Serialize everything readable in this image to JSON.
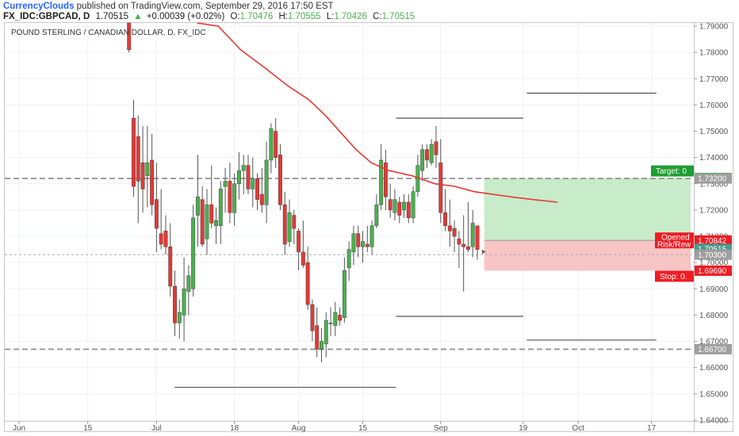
{
  "header": {
    "author": "CurrencyClouds",
    "published": " published on TradingView.com, September 29, 2016 17:50 EST",
    "symbol": "FX_IDC:GBPCAD, D",
    "last": "1.70515",
    "arrow": "▲",
    "change": "+0.00039 (+0.02%)",
    "o_label": "O:",
    "o_value": "1.70476",
    "h_label": "H:",
    "h_value": "1.70555",
    "l_label": "L:",
    "l_value": "1.70426",
    "c_label": "C:",
    "c_value": "1.70515"
  },
  "colors": {
    "up": "#4caf50",
    "down": "#e53935",
    "ma": "#e53935",
    "target_zone": "#c8ebc9",
    "stop_zone": "#f8c5c5",
    "target_tag": "#1e9e30",
    "stop_tag": "#ee1c24",
    "price_tag": "#4a9a8c"
  },
  "chart_data": {
    "type": "candlestick",
    "title": "POUND STERLING / CANADIAN DOLLAR, D, FX_IDC",
    "ylim": [
      1.64,
      1.795
    ],
    "y_ticks": [
      "1.79000",
      "1.78000",
      "1.77000",
      "1.76000",
      "1.75000",
      "1.74000",
      "1.73000",
      "1.72000",
      "1.71000",
      "1.70000",
      "1.69000",
      "1.68000",
      "1.67000",
      "1.66000",
      "1.65000",
      "1.64000"
    ],
    "x_ticks": [
      {
        "label": "Jun",
        "day": 0
      },
      {
        "label": "15",
        "day": 15
      },
      {
        "label": "Jul",
        "day": 30
      },
      {
        "label": "18",
        "day": 47
      },
      {
        "label": "Aug",
        "day": 61
      },
      {
        "label": "15",
        "day": 75
      },
      {
        "label": "Sep",
        "day": 92
      },
      {
        "label": "19",
        "day": 110
      },
      {
        "label": "Oct",
        "day": 122
      },
      {
        "label": "17",
        "day": 138
      }
    ],
    "x_range": [
      -2,
      154
    ],
    "candles": [
      {
        "d": 24,
        "o": 1.797,
        "h": 1.8,
        "l": 1.78,
        "c": 1.781
      },
      {
        "d": 25,
        "o": 1.755,
        "h": 1.762,
        "l": 1.725,
        "c": 1.729
      },
      {
        "d": 26,
        "o": 1.748,
        "h": 1.756,
        "l": 1.715,
        "c": 1.731
      },
      {
        "d": 27,
        "o": 1.738,
        "h": 1.752,
        "l": 1.719,
        "c": 1.728
      },
      {
        "d": 28,
        "o": 1.733,
        "h": 1.752,
        "l": 1.721,
        "c": 1.738
      },
      {
        "d": 29,
        "o": 1.739,
        "h": 1.749,
        "l": 1.718,
        "c": 1.722
      },
      {
        "d": 30,
        "o": 1.724,
        "h": 1.738,
        "l": 1.704,
        "c": 1.713
      },
      {
        "d": 31,
        "o": 1.711,
        "h": 1.728,
        "l": 1.705,
        "c": 1.707
      },
      {
        "d": 32,
        "o": 1.712,
        "h": 1.718,
        "l": 1.703,
        "c": 1.706
      },
      {
        "d": 33,
        "o": 1.706,
        "h": 1.715,
        "l": 1.687,
        "c": 1.691
      },
      {
        "d": 34,
        "o": 1.691,
        "h": 1.697,
        "l": 1.672,
        "c": 1.677
      },
      {
        "d": 35,
        "o": 1.677,
        "h": 1.686,
        "l": 1.671,
        "c": 1.681
      },
      {
        "d": 36,
        "o": 1.68,
        "h": 1.702,
        "l": 1.67,
        "c": 1.69
      },
      {
        "d": 37,
        "o": 1.689,
        "h": 1.699,
        "l": 1.68,
        "c": 1.695
      },
      {
        "d": 38,
        "o": 1.69,
        "h": 1.722,
        "l": 1.687,
        "c": 1.717
      },
      {
        "d": 39,
        "o": 1.718,
        "h": 1.741,
        "l": 1.706,
        "c": 1.725
      },
      {
        "d": 40,
        "o": 1.724,
        "h": 1.729,
        "l": 1.706,
        "c": 1.707
      },
      {
        "d": 41,
        "o": 1.709,
        "h": 1.728,
        "l": 1.703,
        "c": 1.722
      },
      {
        "d": 42,
        "o": 1.722,
        "h": 1.737,
        "l": 1.713,
        "c": 1.715
      },
      {
        "d": 43,
        "o": 1.714,
        "h": 1.721,
        "l": 1.707,
        "c": 1.716
      },
      {
        "d": 44,
        "o": 1.714,
        "h": 1.731,
        "l": 1.707,
        "c": 1.728
      },
      {
        "d": 45,
        "o": 1.729,
        "h": 1.736,
        "l": 1.719,
        "c": 1.731
      },
      {
        "d": 46,
        "o": 1.731,
        "h": 1.738,
        "l": 1.715,
        "c": 1.719
      },
      {
        "d": 47,
        "o": 1.719,
        "h": 1.734,
        "l": 1.714,
        "c": 1.73
      },
      {
        "d": 48,
        "o": 1.73,
        "h": 1.742,
        "l": 1.724,
        "c": 1.735
      },
      {
        "d": 49,
        "o": 1.735,
        "h": 1.741,
        "l": 1.726,
        "c": 1.737
      },
      {
        "d": 50,
        "o": 1.737,
        "h": 1.741,
        "l": 1.726,
        "c": 1.728
      },
      {
        "d": 51,
        "o": 1.728,
        "h": 1.74,
        "l": 1.721,
        "c": 1.732
      },
      {
        "d": 52,
        "o": 1.732,
        "h": 1.734,
        "l": 1.72,
        "c": 1.724
      },
      {
        "d": 53,
        "o": 1.726,
        "h": 1.736,
        "l": 1.719,
        "c": 1.722
      },
      {
        "d": 54,
        "o": 1.722,
        "h": 1.746,
        "l": 1.715,
        "c": 1.739
      },
      {
        "d": 55,
        "o": 1.739,
        "h": 1.753,
        "l": 1.734,
        "c": 1.751
      },
      {
        "d": 56,
        "o": 1.75,
        "h": 1.755,
        "l": 1.736,
        "c": 1.74
      },
      {
        "d": 57,
        "o": 1.741,
        "h": 1.745,
        "l": 1.72,
        "c": 1.722
      },
      {
        "d": 58,
        "o": 1.722,
        "h": 1.727,
        "l": 1.703,
        "c": 1.707
      },
      {
        "d": 59,
        "o": 1.708,
        "h": 1.724,
        "l": 1.706,
        "c": 1.719
      },
      {
        "d": 60,
        "o": 1.718,
        "h": 1.72,
        "l": 1.707,
        "c": 1.713
      },
      {
        "d": 61,
        "o": 1.712,
        "h": 1.713,
        "l": 1.697,
        "c": 1.704
      },
      {
        "d": 62,
        "o": 1.704,
        "h": 1.716,
        "l": 1.698,
        "c": 1.699
      },
      {
        "d": 63,
        "o": 1.7,
        "h": 1.706,
        "l": 1.682,
        "c": 1.684
      },
      {
        "d": 64,
        "o": 1.684,
        "h": 1.686,
        "l": 1.67,
        "c": 1.674
      },
      {
        "d": 65,
        "o": 1.676,
        "h": 1.683,
        "l": 1.664,
        "c": 1.667
      },
      {
        "d": 66,
        "o": 1.667,
        "h": 1.675,
        "l": 1.662,
        "c": 1.67
      },
      {
        "d": 67,
        "o": 1.669,
        "h": 1.681,
        "l": 1.664,
        "c": 1.678
      },
      {
        "d": 68,
        "o": 1.677,
        "h": 1.683,
        "l": 1.672,
        "c": 1.677
      },
      {
        "d": 69,
        "o": 1.676,
        "h": 1.685,
        "l": 1.672,
        "c": 1.681
      },
      {
        "d": 70,
        "o": 1.68,
        "h": 1.683,
        "l": 1.676,
        "c": 1.678
      },
      {
        "d": 71,
        "o": 1.679,
        "h": 1.702,
        "l": 1.677,
        "c": 1.697
      },
      {
        "d": 72,
        "o": 1.698,
        "h": 1.708,
        "l": 1.693,
        "c": 1.705
      },
      {
        "d": 73,
        "o": 1.704,
        "h": 1.714,
        "l": 1.699,
        "c": 1.711
      },
      {
        "d": 74,
        "o": 1.711,
        "h": 1.714,
        "l": 1.702,
        "c": 1.706
      },
      {
        "d": 75,
        "o": 1.706,
        "h": 1.712,
        "l": 1.7,
        "c": 1.708
      },
      {
        "d": 76,
        "o": 1.707,
        "h": 1.714,
        "l": 1.704,
        "c": 1.706
      },
      {
        "d": 77,
        "o": 1.706,
        "h": 1.716,
        "l": 1.703,
        "c": 1.714
      },
      {
        "d": 78,
        "o": 1.714,
        "h": 1.726,
        "l": 1.713,
        "c": 1.722
      },
      {
        "d": 79,
        "o": 1.722,
        "h": 1.745,
        "l": 1.72,
        "c": 1.739
      },
      {
        "d": 80,
        "o": 1.738,
        "h": 1.743,
        "l": 1.72,
        "c": 1.725
      },
      {
        "d": 81,
        "o": 1.724,
        "h": 1.73,
        "l": 1.717,
        "c": 1.72
      },
      {
        "d": 82,
        "o": 1.719,
        "h": 1.728,
        "l": 1.716,
        "c": 1.724
      },
      {
        "d": 83,
        "o": 1.723,
        "h": 1.725,
        "l": 1.715,
        "c": 1.718
      },
      {
        "d": 84,
        "o": 1.72,
        "h": 1.726,
        "l": 1.717,
        "c": 1.723
      },
      {
        "d": 85,
        "o": 1.723,
        "h": 1.726,
        "l": 1.715,
        "c": 1.717
      },
      {
        "d": 86,
        "o": 1.717,
        "h": 1.729,
        "l": 1.715,
        "c": 1.727
      },
      {
        "d": 87,
        "o": 1.727,
        "h": 1.741,
        "l": 1.725,
        "c": 1.737
      },
      {
        "d": 88,
        "o": 1.735,
        "h": 1.745,
        "l": 1.731,
        "c": 1.743
      },
      {
        "d": 89,
        "o": 1.743,
        "h": 1.745,
        "l": 1.736,
        "c": 1.739
      },
      {
        "d": 90,
        "o": 1.738,
        "h": 1.747,
        "l": 1.737,
        "c": 1.745
      },
      {
        "d": 91,
        "o": 1.746,
        "h": 1.752,
        "l": 1.736,
        "c": 1.741
      },
      {
        "d": 92,
        "o": 1.738,
        "h": 1.747,
        "l": 1.715,
        "c": 1.719
      },
      {
        "d": 93,
        "o": 1.719,
        "h": 1.728,
        "l": 1.712,
        "c": 1.714
      },
      {
        "d": 94,
        "o": 1.714,
        "h": 1.724,
        "l": 1.706,
        "c": 1.712
      },
      {
        "d": 95,
        "o": 1.713,
        "h": 1.716,
        "l": 1.704,
        "c": 1.71
      },
      {
        "d": 96,
        "o": 1.709,
        "h": 1.712,
        "l": 1.698,
        "c": 1.707
      },
      {
        "d": 97,
        "o": 1.707,
        "h": 1.718,
        "l": 1.689,
        "c": 1.706
      },
      {
        "d": 98,
        "o": 1.706,
        "h": 1.723,
        "l": 1.704,
        "c": 1.705
      },
      {
        "d": 99,
        "o": 1.706,
        "h": 1.72,
        "l": 1.702,
        "c": 1.715
      },
      {
        "d": 100,
        "o": 1.714,
        "h": 1.714,
        "l": 1.701,
        "c": 1.705
      }
    ],
    "ma_line": [
      [
        15.5,
        1.802
      ],
      [
        17.3,
        1.79
      ],
      [
        19.2,
        1.781
      ],
      [
        21.3,
        1.774
      ],
      [
        23.3,
        1.767
      ],
      [
        25.0,
        1.762
      ],
      [
        26.4,
        1.756
      ],
      [
        27.8,
        1.749
      ],
      [
        29.0,
        1.743
      ],
      [
        30.3,
        1.738
      ],
      [
        31.8,
        1.735
      ],
      [
        33.8,
        1.733
      ],
      [
        35.7,
        1.73
      ],
      [
        37.4,
        1.729
      ],
      [
        39.0,
        1.727
      ],
      [
        40.6,
        1.726
      ],
      [
        42.2,
        1.725
      ],
      [
        44.0,
        1.724
      ],
      [
        46.1,
        1.723
      ]
    ],
    "horizontal_levels": [
      {
        "name": "level-1-7320",
        "y": 1.732,
        "style": "dashed",
        "label": "1.73200"
      },
      {
        "name": "level-1-6670",
        "y": 1.667,
        "style": "dashed",
        "label": "1.66700"
      },
      {
        "name": "level-1-7030",
        "y": 1.703,
        "style": "dashed-thin",
        "label": "1.70300"
      }
    ],
    "segments": [
      {
        "name": "range-top-aug",
        "x1": 32.4,
        "x2": 43.2,
        "y": 1.755
      },
      {
        "name": "range-top-sep",
        "x1": 43.5,
        "x2": 54.5,
        "y": 1.7645
      },
      {
        "name": "range-mid-aug",
        "x1": 32.4,
        "x2": 43.2,
        "y": 1.6795
      },
      {
        "name": "range-low-sep",
        "x1": 43.5,
        "x2": 54.5,
        "y": 1.6705
      },
      {
        "name": "range-low-jul",
        "x1": 13.6,
        "x2": 32.4,
        "y": 1.6525
      }
    ],
    "position": {
      "entry": 1.70842,
      "target": 1.73217,
      "stop": 1.6969,
      "x_start": 101.5,
      "target_label": "Target: 0",
      "stop_label": "Stop: 0.",
      "opened_label": "Opened",
      "risk_label": "Risk/Rew"
    },
    "price_tags": [
      {
        "name": "tag-target",
        "value": "1.73217",
        "y": 1.73217,
        "kind": "target"
      },
      {
        "name": "tag-level-7320",
        "value": "1.73200",
        "y": 1.732,
        "kind": "gray"
      },
      {
        "name": "tag-entry",
        "value": "1.70842",
        "y": 1.70842,
        "kind": "entry"
      },
      {
        "name": "tag-last",
        "value": "1.70515",
        "y": 1.70515,
        "kind": "last"
      },
      {
        "name": "tag-level-7030",
        "value": "1.70300",
        "y": 1.703,
        "kind": "gray"
      },
      {
        "name": "tag-stop",
        "value": "1.69690",
        "y": 1.6969,
        "kind": "stop"
      },
      {
        "name": "tag-level-6670",
        "value": "1.66700",
        "y": 1.667,
        "kind": "gray"
      }
    ]
  }
}
